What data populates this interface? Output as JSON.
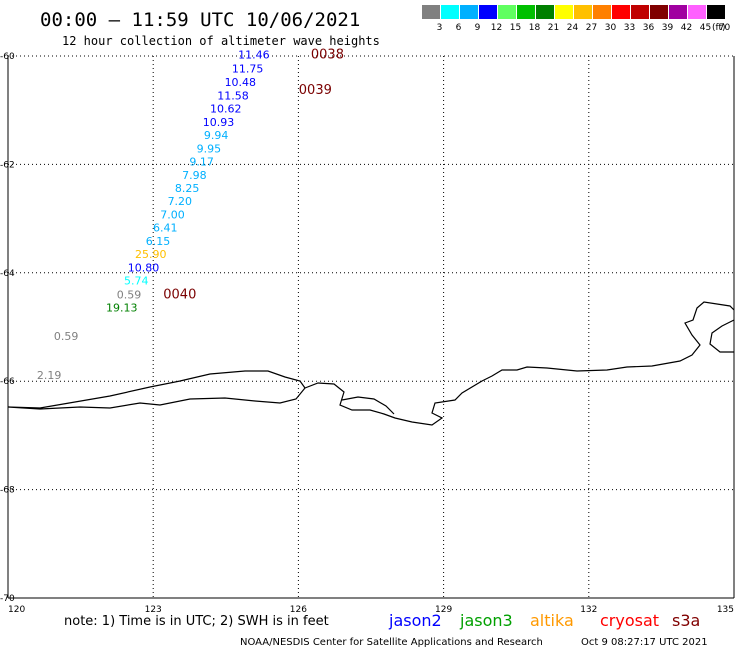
{
  "header": {
    "title": "00:00 – 11:59 UTC 10/06/2021",
    "subtitle": "12 hour collection of altimeter wave heights"
  },
  "legend": {
    "unit": "(ft)",
    "bins": [
      {
        "label": "3",
        "color": "#808080"
      },
      {
        "label": "6",
        "color": "#00ffff"
      },
      {
        "label": "9",
        "color": "#00b0ff"
      },
      {
        "label": "12",
        "color": "#0000ff"
      },
      {
        "label": "15",
        "color": "#60ff60"
      },
      {
        "label": "18",
        "color": "#00c000"
      },
      {
        "label": "21",
        "color": "#008000"
      },
      {
        "label": "24",
        "color": "#ffff00"
      },
      {
        "label": "27",
        "color": "#ffc000"
      },
      {
        "label": "30",
        "color": "#ff8000"
      },
      {
        "label": "33",
        "color": "#ff0000"
      },
      {
        "label": "36",
        "color": "#c00000"
      },
      {
        "label": "39",
        "color": "#800000"
      },
      {
        "label": "42",
        "color": "#a000a0"
      },
      {
        "label": "45",
        "color": "#ff60ff"
      },
      {
        "label": "70",
        "color": "#000000"
      }
    ]
  },
  "map": {
    "lon_range": [
      120,
      135
    ],
    "lat_range": [
      -60,
      -70
    ],
    "lon_ticks": [
      {
        "value": 120,
        "label": "120"
      },
      {
        "value": 123,
        "label": "123"
      },
      {
        "value": 126,
        "label": "126"
      },
      {
        "value": 129,
        "label": "129"
      },
      {
        "value": 132,
        "label": "132"
      },
      {
        "value": 135,
        "label": "135"
      }
    ],
    "lat_ticks": [
      {
        "value": -60,
        "label": "-60"
      },
      {
        "value": -62,
        "label": "-62"
      },
      {
        "value": -64,
        "label": "-64"
      },
      {
        "value": -66,
        "label": "-66"
      },
      {
        "value": -68,
        "label": "-68"
      },
      {
        "value": -70,
        "label": "-70"
      }
    ],
    "wave_heights": [
      {
        "text": "11.46",
        "lon": 125.08,
        "lat": -60.05,
        "color": "#0000ff"
      },
      {
        "text": "11.75",
        "lon": 124.95,
        "lat": -60.3,
        "color": "#0000ff"
      },
      {
        "text": "10.48",
        "lon": 124.8,
        "lat": -60.55,
        "color": "#0000ff"
      },
      {
        "text": "11.58",
        "lon": 124.65,
        "lat": -60.8,
        "color": "#0000ff"
      },
      {
        "text": "10.62",
        "lon": 124.5,
        "lat": -61.04,
        "color": "#0000ff"
      },
      {
        "text": "10.93",
        "lon": 124.35,
        "lat": -61.29,
        "color": "#0000ff"
      },
      {
        "text": "9.94",
        "lon": 124.3,
        "lat": -61.53,
        "color": "#00b0ff"
      },
      {
        "text": "9.95",
        "lon": 124.15,
        "lat": -61.78,
        "color": "#00b0ff"
      },
      {
        "text": "9.17",
        "lon": 124.0,
        "lat": -62.02,
        "color": "#00b0ff"
      },
      {
        "text": "7.98",
        "lon": 123.85,
        "lat": -62.27,
        "color": "#00b0ff"
      },
      {
        "text": "8.25",
        "lon": 123.7,
        "lat": -62.51,
        "color": "#00b0ff"
      },
      {
        "text": "7.20",
        "lon": 123.55,
        "lat": -62.75,
        "color": "#00b0ff"
      },
      {
        "text": "7.00",
        "lon": 123.4,
        "lat": -63.0,
        "color": "#00b0ff"
      },
      {
        "text": "6.41",
        "lon": 123.25,
        "lat": -63.24,
        "color": "#00b0ff"
      },
      {
        "text": "6.15",
        "lon": 123.1,
        "lat": -63.49,
        "color": "#00b0ff"
      },
      {
        "text": "25.90",
        "lon": 122.95,
        "lat": -63.73,
        "color": "#ffc000"
      },
      {
        "text": "10.80",
        "lon": 122.8,
        "lat": -63.98,
        "color": "#0000ff"
      },
      {
        "text": "5.74",
        "lon": 122.65,
        "lat": -64.22,
        "color": "#00ffff"
      },
      {
        "text": "0.59",
        "lon": 122.5,
        "lat": -64.47,
        "color": "#808080"
      },
      {
        "text": "19.13",
        "lon": 122.35,
        "lat": -64.71,
        "color": "#008000"
      },
      {
        "text": "0.59",
        "lon": 121.2,
        "lat": -65.24,
        "color": "#808080"
      },
      {
        "text": "2.19",
        "lon": 120.85,
        "lat": -65.96,
        "color": "#808080"
      }
    ],
    "pass_times": [
      {
        "text": "0038",
        "lon": 126.6,
        "lat": -60.05
      },
      {
        "text": "0039",
        "lon": 126.35,
        "lat": -60.7
      },
      {
        "text": "0040",
        "lon": 123.55,
        "lat": -64.47
      }
    ]
  },
  "footer": {
    "note": "note: 1) Time is in UTC; 2) SWH is in feet",
    "satellites": [
      {
        "name": "jason2",
        "color": "#0000ff"
      },
      {
        "name": "jason3",
        "color": "#00a000"
      },
      {
        "name": "altika",
        "color": "#ff9900"
      },
      {
        "name": "cryosat",
        "color": "#ff0000"
      },
      {
        "name": "s3a",
        "color": "#800000"
      }
    ],
    "credit": "NOAA/NESDIS Center for Satellite Applications and Research",
    "timestamp": "Oct  9 08:27:17 UTC 2021"
  }
}
